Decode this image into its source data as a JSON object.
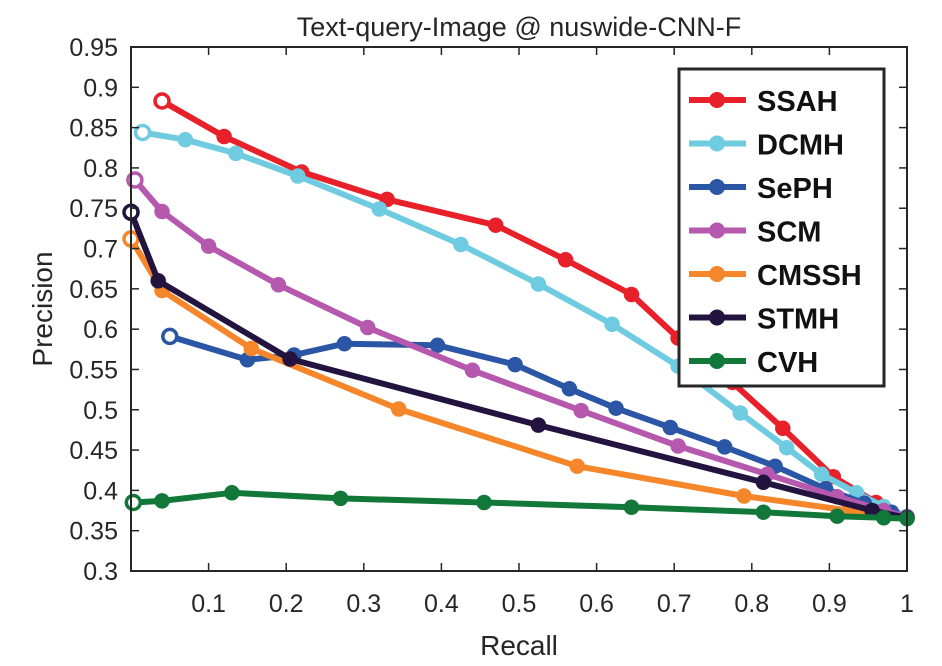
{
  "chart_data": {
    "type": "line",
    "title": "Text-query-Image @ nuswide-CNN-F",
    "xlabel": "Recall",
    "ylabel": "Precision",
    "xlim": [
      0,
      1
    ],
    "ylim": [
      0.3,
      0.95
    ],
    "xticks": [
      0.1,
      0.2,
      0.3,
      0.4,
      0.5,
      0.6,
      0.7,
      0.8,
      0.9,
      1
    ],
    "xtick_labels": [
      "0.1",
      "0.2",
      "0.3",
      "0.4",
      "0.5",
      "0.6",
      "0.7",
      "0.8",
      "0.9",
      "1"
    ],
    "yticks": [
      0.3,
      0.35,
      0.4,
      0.45,
      0.5,
      0.55,
      0.6,
      0.65,
      0.7,
      0.75,
      0.8,
      0.85,
      0.9,
      0.95
    ],
    "ytick_labels": [
      "0.3",
      "0.35",
      "0.4",
      "0.45",
      "0.5",
      "0.55",
      "0.6",
      "0.65",
      "0.7",
      "0.75",
      "0.8",
      "0.85",
      "0.9",
      "0.95"
    ],
    "grid": false,
    "legend_position": "top-right",
    "series": [
      {
        "name": "SSAH",
        "color": "#E8202A",
        "x": [
          0.04,
          0.12,
          0.22,
          0.33,
          0.47,
          0.56,
          0.645,
          0.705,
          0.775,
          0.84,
          0.905,
          0.96,
          1.0
        ],
        "y": [
          0.883,
          0.839,
          0.795,
          0.761,
          0.729,
          0.686,
          0.643,
          0.589,
          0.534,
          0.477,
          0.417,
          0.385,
          0.366
        ]
      },
      {
        "name": "DCMH",
        "color": "#6ECBE0",
        "x": [
          0.015,
          0.07,
          0.135,
          0.215,
          0.32,
          0.425,
          0.525,
          0.62,
          0.705,
          0.785,
          0.845,
          0.89,
          0.935,
          0.97,
          1.0
        ],
        "y": [
          0.844,
          0.835,
          0.818,
          0.79,
          0.749,
          0.705,
          0.656,
          0.606,
          0.554,
          0.496,
          0.453,
          0.42,
          0.397,
          0.38,
          0.368
        ]
      },
      {
        "name": "SePH",
        "color": "#2B55A5",
        "x": [
          0.05,
          0.15,
          0.21,
          0.275,
          0.395,
          0.495,
          0.565,
          0.625,
          0.695,
          0.765,
          0.83,
          0.895,
          0.945,
          0.98,
          1.0
        ],
        "y": [
          0.591,
          0.562,
          0.568,
          0.582,
          0.58,
          0.556,
          0.526,
          0.502,
          0.478,
          0.454,
          0.43,
          0.402,
          0.384,
          0.373,
          0.367
        ]
      },
      {
        "name": "SCM",
        "color": "#B558AE",
        "x": [
          0.005,
          0.04,
          0.1,
          0.19,
          0.305,
          0.44,
          0.58,
          0.705,
          0.82,
          0.91,
          0.97,
          1.0
        ],
        "y": [
          0.785,
          0.746,
          0.703,
          0.655,
          0.602,
          0.549,
          0.499,
          0.455,
          0.42,
          0.392,
          0.375,
          0.367
        ]
      },
      {
        "name": "CMSSH",
        "color": "#F5862A",
        "x": [
          0.0,
          0.04,
          0.155,
          0.345,
          0.575,
          0.79,
          0.925,
          1.0
        ],
        "y": [
          0.712,
          0.648,
          0.576,
          0.501,
          0.43,
          0.393,
          0.375,
          0.366
        ]
      },
      {
        "name": "STMH",
        "color": "#22133F",
        "x": [
          0.0,
          0.035,
          0.205,
          0.525,
          0.815,
          0.955,
          1.0
        ],
        "y": [
          0.745,
          0.66,
          0.563,
          0.481,
          0.41,
          0.375,
          0.366
        ]
      },
      {
        "name": "CVH",
        "color": "#12783A",
        "x": [
          0.003,
          0.04,
          0.13,
          0.27,
          0.455,
          0.645,
          0.815,
          0.91,
          0.97,
          1.0
        ],
        "y": [
          0.385,
          0.387,
          0.397,
          0.39,
          0.385,
          0.379,
          0.373,
          0.368,
          0.366,
          0.365
        ]
      }
    ]
  }
}
